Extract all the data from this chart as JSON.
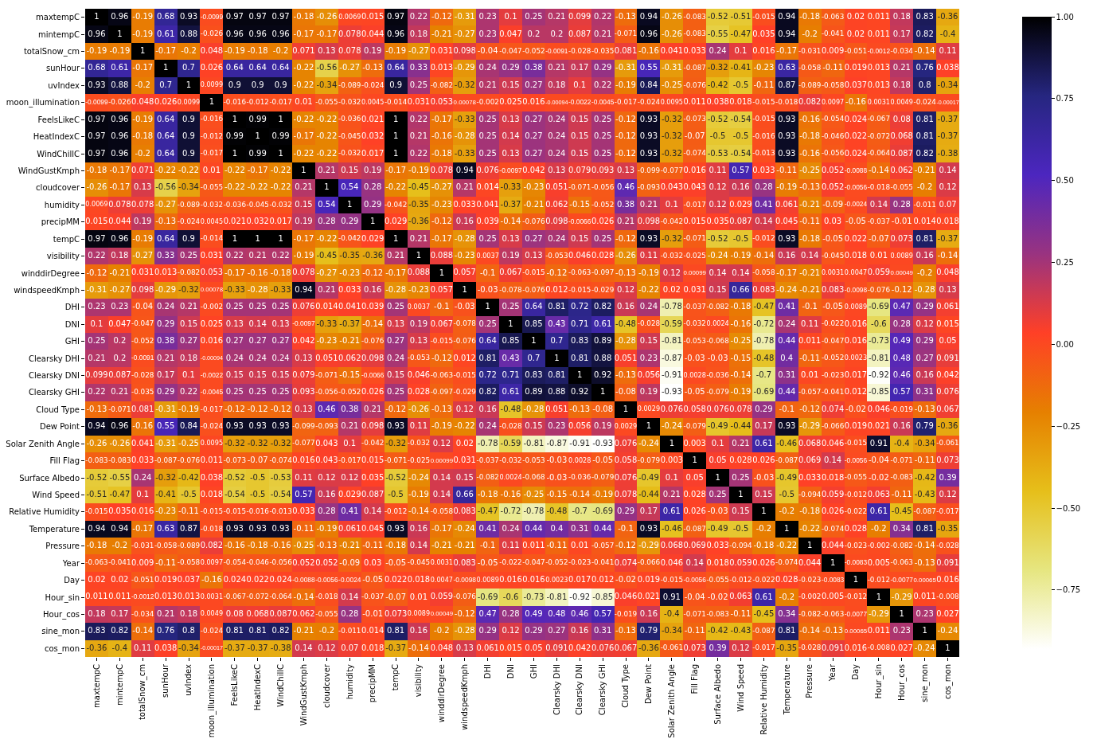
{
  "chart_data": {
    "type": "heatmap",
    "categories": [
      "maxtempC",
      "mintempC",
      "totalSnow_cm",
      "sunHour",
      "uvIndex",
      "moon_illumination",
      "FeelsLikeC",
      "HeatIndexC",
      "WindChillC",
      "WindGustKmph",
      "cloudcover",
      "humidity",
      "precipMM",
      "tempC",
      "visibility",
      "winddirDegree",
      "windspeedKmph",
      "DHI",
      "DNI",
      "GHI",
      "Clearsky DHI",
      "Clearsky DNI",
      "Clearsky GHI",
      "Cloud Type",
      "Dew Point",
      "Solar Zenith Angle",
      "Fill Flag",
      "Surface Albedo",
      "Wind Speed",
      "Relative Humidity",
      "Temperature",
      "Pressure",
      "Year",
      "Day",
      "Hour_sin",
      "Hour_cos",
      "sine_mon",
      "cos_mon"
    ],
    "y_categories": [
      "maxtempC",
      "mintempC",
      "totalSnow_cm",
      "sunHour",
      "uvIndex",
      "moon_illumination",
      "FeelsLikeC",
      "HeatIndexC",
      "WindChillC",
      "WindGustKmph",
      "cloudcover",
      "humidity",
      "precipMM",
      "tempC",
      "visibility",
      "winddirDegree",
      "windspeedKmph",
      "DHI",
      "DNI",
      "GHI",
      "Clearsky DHI",
      "Clearsky DNI",
      "Clearsky GHI",
      "Cloud Type",
      "Dew Point",
      "Solar Zenith Angle",
      "Fill Flag",
      "Surface Albedo",
      "Wind Speed",
      "Relative Humidity",
      "Temperature",
      "Pressure",
      "Year",
      "Day",
      "Hour_sin",
      "Hour_cos",
      "sine_mon",
      "cos_mon"
    ],
    "cells": [
      [
        1,
        0.96,
        -0.19,
        0.68,
        0.93,
        -0.0099,
        0.97,
        0.97,
        0.97,
        -0.18,
        -0.26,
        0.0069,
        0.015,
        0.97,
        0.22,
        -0.12,
        -0.31,
        0.23,
        0.1,
        0.25,
        0.21,
        0.099,
        0.22,
        -0.13,
        0.94,
        -0.26,
        -0.083,
        -0.52,
        -0.51,
        -0.015,
        0.94,
        -0.18,
        -0.063,
        0.02,
        0.011,
        0.18,
        0.83,
        -0.36
      ],
      [
        0.96,
        1,
        -0.19,
        0.61,
        0.88,
        -0.026,
        0.96,
        0.96,
        0.96,
        -0.17,
        -0.17,
        0.078,
        0.044,
        0.96,
        0.18,
        -0.21,
        -0.27,
        0.23,
        0.047,
        0.2,
        0.2,
        0.087,
        0.21,
        -0.071,
        0.96,
        -0.26,
        -0.083,
        -0.55,
        -0.47,
        0.035,
        0.94,
        -0.2,
        -0.041,
        0.02,
        0.011,
        0.17,
        0.82,
        -0.4
      ],
      [
        -0.19,
        -0.19,
        1,
        -0.17,
        -0.2,
        0.048,
        -0.19,
        -0.18,
        -0.2,
        0.071,
        0.13,
        0.078,
        0.19,
        -0.19,
        -0.27,
        0.031,
        0.098,
        -0.04,
        -0.047,
        -0.052,
        -0.0091,
        -0.028,
        -0.035,
        0.081,
        -0.16,
        0.041,
        0.033,
        0.24,
        0.1,
        0.016,
        -0.17,
        -0.031,
        0.009,
        -0.051,
        -0.0012,
        -0.034,
        -0.14,
        0.11
      ],
      [
        0.68,
        0.61,
        -0.17,
        1,
        0.7,
        0.026,
        0.64,
        0.64,
        0.64,
        -0.22,
        -0.56,
        -0.27,
        -0.13,
        0.64,
        0.33,
        0.013,
        -0.29,
        0.24,
        0.29,
        0.38,
        0.21,
        0.17,
        0.29,
        -0.31,
        0.55,
        -0.31,
        -0.087,
        -0.32,
        -0.41,
        -0.23,
        0.63,
        -0.058,
        -0.11,
        0.019,
        0.013,
        0.21,
        0.76,
        0.038
      ],
      [
        0.93,
        0.88,
        -0.2,
        0.7,
        1,
        0.0099,
        0.9,
        0.9,
        0.9,
        -0.22,
        -0.34,
        -0.089,
        -0.024,
        0.9,
        0.25,
        -0.082,
        -0.32,
        0.21,
        0.15,
        0.27,
        0.18,
        0.1,
        0.22,
        -0.19,
        0.84,
        -0.25,
        -0.076,
        -0.42,
        -0.5,
        -0.11,
        0.87,
        -0.089,
        -0.058,
        0.037,
        0.013,
        0.18,
        0.8,
        -0.34
      ],
      [
        -0.0099,
        -0.026,
        0.048,
        0.026,
        0.0099,
        1,
        -0.016,
        -0.012,
        -0.017,
        0.01,
        -0.055,
        -0.032,
        0.0045,
        -0.014,
        0.031,
        0.053,
        0.00078,
        -0.002,
        0.025,
        0.016,
        -0.00094,
        -0.0022,
        -0.0045,
        -0.017,
        -0.024,
        0.0095,
        0.011,
        0.038,
        0.018,
        -0.015,
        -0.018,
        0.082,
        0.0097,
        -0.16,
        0.0031,
        0.0049,
        -0.024,
        -0.00017
      ],
      [
        0.97,
        0.96,
        -0.19,
        0.64,
        0.9,
        -0.016,
        1,
        0.99,
        1,
        -0.22,
        -0.22,
        -0.036,
        0.021,
        1,
        0.22,
        -0.17,
        -0.33,
        0.25,
        0.13,
        0.27,
        0.24,
        0.15,
        0.25,
        -0.12,
        0.93,
        -0.32,
        -0.073,
        -0.52,
        -0.54,
        -0.015,
        0.93,
        -0.16,
        -0.054,
        0.024,
        -0.067,
        0.08,
        0.81,
        -0.37
      ],
      [
        0.97,
        0.96,
        -0.18,
        0.64,
        0.9,
        -0.012,
        0.99,
        1,
        0.99,
        -0.17,
        -0.22,
        -0.045,
        0.032,
        1,
        0.21,
        -0.16,
        -0.28,
        0.25,
        0.14,
        0.27,
        0.24,
        0.15,
        0.25,
        -0.12,
        0.93,
        -0.32,
        -0.07,
        -0.5,
        -0.5,
        -0.016,
        0.93,
        -0.18,
        -0.046,
        0.022,
        -0.072,
        0.068,
        0.81,
        -0.37
      ],
      [
        0.97,
        0.96,
        -0.2,
        0.64,
        0.9,
        -0.017,
        1,
        0.99,
        1,
        -0.22,
        -0.22,
        -0.032,
        0.017,
        1,
        0.22,
        -0.18,
        -0.33,
        0.25,
        0.13,
        0.27,
        0.24,
        0.15,
        0.25,
        -0.12,
        0.93,
        -0.32,
        -0.074,
        -0.53,
        -0.54,
        -0.013,
        0.93,
        -0.16,
        -0.056,
        0.024,
        -0.064,
        0.087,
        0.82,
        -0.38
      ],
      [
        -0.18,
        -0.17,
        0.071,
        -0.22,
        -0.22,
        0.01,
        -0.22,
        -0.17,
        -0.22,
        1,
        0.21,
        0.15,
        0.19,
        -0.17,
        -0.19,
        0.078,
        0.94,
        0.076,
        -0.0097,
        0.042,
        0.13,
        0.079,
        0.093,
        0.13,
        -0.099,
        -0.077,
        0.016,
        0.11,
        0.57,
        0.033,
        -0.11,
        -0.25,
        0.052,
        -0.0088,
        -0.14,
        0.062,
        -0.21,
        0.14
      ],
      [
        -0.26,
        -0.17,
        0.13,
        -0.56,
        -0.34,
        -0.055,
        -0.22,
        -0.22,
        -0.22,
        0.21,
        1,
        0.54,
        0.28,
        -0.22,
        -0.45,
        -0.27,
        0.21,
        0.014,
        -0.33,
        -0.23,
        0.051,
        -0.071,
        -0.056,
        0.46,
        -0.093,
        0.043,
        0.043,
        0.12,
        0.16,
        0.28,
        -0.19,
        -0.13,
        0.052,
        -0.0056,
        -0.018,
        -0.055,
        -0.2,
        0.12
      ],
      [
        0.0069,
        0.078,
        0.078,
        -0.27,
        -0.089,
        -0.032,
        -0.036,
        -0.045,
        -0.032,
        0.15,
        0.54,
        1,
        0.29,
        -0.042,
        -0.35,
        -0.23,
        0.033,
        0.041,
        -0.37,
        -0.21,
        0.062,
        -0.15,
        -0.052,
        0.38,
        0.21,
        0.1,
        -0.017,
        0.12,
        0.029,
        0.41,
        0.061,
        -0.21,
        -0.09,
        -0.0024,
        0.14,
        0.28,
        -0.011,
        0.07
      ],
      [
        0.015,
        0.044,
        0.19,
        -0.13,
        -0.024,
        0.0045,
        0.021,
        0.032,
        0.017,
        0.19,
        0.28,
        0.29,
        1,
        0.029,
        -0.36,
        -0.12,
        0.16,
        0.039,
        -0.14,
        -0.076,
        0.098,
        -0.0066,
        0.026,
        0.21,
        0.098,
        -0.042,
        0.015,
        0.035,
        0.087,
        0.14,
        0.045,
        -0.11,
        0.03,
        -0.05,
        -0.037,
        -0.01,
        0.014,
        0.018
      ],
      [
        0.97,
        0.96,
        -0.19,
        0.64,
        0.9,
        -0.014,
        1,
        1,
        1,
        -0.17,
        -0.22,
        -0.042,
        0.029,
        1,
        0.21,
        -0.17,
        -0.28,
        0.25,
        0.13,
        0.27,
        0.24,
        0.15,
        0.25,
        -0.12,
        0.93,
        -0.32,
        -0.071,
        -0.52,
        -0.5,
        -0.012,
        0.93,
        -0.18,
        -0.05,
        0.022,
        -0.07,
        0.073,
        0.81,
        -0.37
      ],
      [
        0.22,
        0.18,
        -0.27,
        0.33,
        0.25,
        0.031,
        0.22,
        0.21,
        0.22,
        -0.19,
        -0.45,
        -0.35,
        -0.36,
        0.21,
        1,
        0.088,
        -0.23,
        0.0037,
        0.19,
        0.13,
        -0.053,
        0.046,
        0.028,
        -0.26,
        0.11,
        -0.032,
        -0.025,
        -0.24,
        -0.19,
        -0.14,
        0.16,
        0.14,
        -0.045,
        0.018,
        0.01,
        0.0089,
        0.16,
        -0.14
      ],
      [
        -0.12,
        -0.21,
        0.031,
        0.013,
        -0.082,
        0.053,
        -0.17,
        -0.16,
        -0.18,
        0.078,
        -0.27,
        -0.23,
        -0.12,
        -0.17,
        0.088,
        1,
        0.057,
        -0.1,
        0.067,
        -0.015,
        -0.12,
        -0.063,
        -0.097,
        -0.13,
        -0.19,
        0.12,
        0.00099,
        0.14,
        0.14,
        -0.058,
        -0.17,
        -0.21,
        0.0031,
        0.0047,
        0.059,
        0.00049,
        -0.2,
        0.048
      ],
      [
        -0.31,
        -0.27,
        0.098,
        -0.29,
        -0.32,
        0.00078,
        -0.33,
        -0.28,
        -0.33,
        0.94,
        0.21,
        0.033,
        0.16,
        -0.28,
        -0.23,
        0.057,
        1,
        -0.03,
        -0.078,
        -0.076,
        0.012,
        -0.015,
        -0.029,
        0.12,
        -0.22,
        0.02,
        0.031,
        0.15,
        0.66,
        0.083,
        -0.24,
        -0.21,
        0.083,
        -0.0098,
        -0.076,
        -0.12,
        -0.28,
        0.13
      ],
      [
        0.23,
        0.23,
        -0.04,
        0.24,
        0.21,
        -0.002,
        0.25,
        0.25,
        0.25,
        0.076,
        0.014,
        0.041,
        0.039,
        0.25,
        0.0037,
        -0.1,
        -0.03,
        1,
        0.25,
        0.64,
        0.81,
        0.72,
        0.82,
        0.16,
        0.24,
        -0.78,
        -0.037,
        -0.082,
        -0.18,
        -0.47,
        0.41,
        -0.1,
        -0.05,
        0.0089,
        -0.69,
        0.47,
        0.29,
        0.061
      ],
      [
        0.1,
        0.047,
        -0.047,
        0.29,
        0.15,
        0.025,
        0.13,
        0.14,
        0.13,
        -0.0097,
        -0.33,
        -0.37,
        -0.14,
        0.13,
        0.19,
        0.067,
        -0.078,
        0.25,
        1,
        0.85,
        0.43,
        0.71,
        0.61,
        -0.48,
        -0.028,
        -0.59,
        -0.032,
        0.0024,
        -0.16,
        -0.72,
        0.24,
        0.11,
        -0.022,
        0.016,
        -0.6,
        0.28,
        0.12,
        0.015
      ],
      [
        0.25,
        0.2,
        -0.052,
        0.38,
        0.27,
        0.016,
        0.27,
        0.27,
        0.27,
        0.042,
        -0.23,
        -0.21,
        -0.076,
        0.27,
        0.13,
        -0.015,
        -0.076,
        0.64,
        0.85,
        1,
        0.7,
        0.83,
        0.89,
        -0.28,
        0.15,
        -0.81,
        -0.053,
        -0.068,
        -0.25,
        -0.78,
        0.44,
        0.011,
        -0.047,
        0.016,
        -0.73,
        0.49,
        0.29,
        0.05
      ],
      [
        0.21,
        0.2,
        -0.0091,
        0.21,
        0.18,
        -0.00094,
        0.24,
        0.24,
        0.24,
        0.13,
        0.051,
        0.062,
        0.098,
        0.24,
        -0.053,
        -0.12,
        0.012,
        0.81,
        0.43,
        0.7,
        1,
        0.81,
        0.88,
        0.051,
        0.23,
        -0.87,
        -0.03,
        -0.03,
        -0.15,
        -0.48,
        0.4,
        -0.11,
        -0.052,
        0.0023,
        -0.81,
        0.48,
        0.27,
        0.091
      ],
      [
        0.099,
        0.087,
        -0.028,
        0.17,
        0.1,
        -0.0022,
        0.15,
        0.15,
        0.15,
        0.079,
        -0.071,
        -0.15,
        -0.0066,
        0.15,
        0.046,
        -0.063,
        -0.015,
        0.72,
        0.71,
        0.83,
        0.81,
        1,
        0.92,
        -0.13,
        0.056,
        -0.91,
        0.0028,
        -0.036,
        -0.14,
        -0.7,
        0.31,
        0.01,
        -0.023,
        0.017,
        -0.92,
        0.46,
        0.16,
        0.042
      ],
      [
        0.22,
        0.21,
        -0.035,
        0.29,
        0.22,
        -0.0045,
        0.25,
        0.25,
        0.25,
        0.093,
        -0.056,
        -0.052,
        0.026,
        0.25,
        0.028,
        -0.097,
        -0.029,
        0.82,
        0.61,
        0.89,
        0.88,
        0.92,
        1,
        -0.08,
        0.19,
        -0.93,
        -0.05,
        -0.079,
        -0.19,
        -0.69,
        0.44,
        -0.057,
        -0.041,
        0.012,
        -0.85,
        0.57,
        0.31,
        0.076
      ],
      [
        -0.13,
        -0.071,
        0.081,
        -0.31,
        -0.19,
        -0.017,
        -0.12,
        -0.12,
        -0.12,
        0.13,
        0.46,
        0.38,
        0.21,
        -0.12,
        -0.26,
        -0.13,
        0.12,
        0.16,
        -0.48,
        -0.28,
        0.051,
        -0.13,
        -0.08,
        1,
        0.0029,
        0.076,
        0.058,
        0.076,
        0.078,
        0.29,
        -0.1,
        -0.12,
        0.074,
        -0.02,
        0.046,
        -0.019,
        -0.13,
        0.067
      ],
      [
        0.94,
        0.96,
        -0.16,
        0.55,
        0.84,
        -0.024,
        0.93,
        0.93,
        0.93,
        -0.099,
        -0.093,
        0.21,
        0.098,
        0.93,
        0.11,
        -0.19,
        -0.22,
        0.24,
        -0.028,
        0.15,
        0.23,
        0.056,
        0.19,
        0.0029,
        1,
        -0.24,
        -0.079,
        -0.49,
        -0.44,
        0.17,
        0.93,
        -0.29,
        -0.066,
        0.019,
        0.021,
        0.16,
        0.79,
        -0.36
      ],
      [
        -0.26,
        -0.26,
        0.041,
        -0.31,
        -0.25,
        0.0095,
        -0.32,
        -0.32,
        -0.32,
        -0.077,
        0.043,
        0.1,
        -0.042,
        -0.32,
        -0.032,
        0.12,
        0.02,
        -0.78,
        -0.59,
        -0.81,
        -0.87,
        -0.91,
        -0.93,
        0.076,
        -0.24,
        1,
        0.003,
        0.1,
        0.21,
        0.61,
        -0.46,
        0.068,
        0.046,
        -0.015,
        0.91,
        -0.4,
        -0.34,
        -0.061
      ],
      [
        -0.083,
        -0.083,
        0.033,
        -0.087,
        -0.076,
        0.011,
        -0.073,
        -0.07,
        -0.074,
        0.016,
        0.043,
        -0.017,
        0.015,
        -0.071,
        -0.025,
        0.00099,
        0.031,
        -0.037,
        -0.032,
        -0.053,
        -0.03,
        0.0028,
        -0.05,
        0.058,
        -0.079,
        0.003,
        1,
        0.05,
        0.028,
        0.026,
        -0.087,
        0.069,
        0.14,
        -0.0056,
        -0.04,
        -0.071,
        -0.11,
        0.073
      ],
      [
        -0.52,
        -0.55,
        0.24,
        -0.32,
        -0.42,
        0.038,
        -0.52,
        -0.5,
        -0.53,
        0.11,
        0.12,
        0.12,
        0.035,
        -0.52,
        -0.24,
        0.14,
        0.15,
        -0.082,
        0.0024,
        -0.068,
        -0.03,
        -0.036,
        -0.079,
        0.076,
        -0.49,
        0.1,
        0.05,
        1,
        0.25,
        -0.03,
        -0.49,
        0.033,
        0.018,
        -0.055,
        -0.02,
        -0.083,
        -0.42,
        0.39
      ],
      [
        -0.51,
        -0.47,
        0.1,
        -0.41,
        -0.5,
        0.018,
        -0.54,
        -0.5,
        -0.54,
        0.57,
        0.16,
        0.029,
        0.087,
        -0.5,
        -0.19,
        0.14,
        0.66,
        -0.18,
        -0.16,
        -0.25,
        -0.15,
        -0.14,
        -0.19,
        0.078,
        -0.44,
        0.21,
        0.028,
        0.25,
        1,
        0.15,
        -0.5,
        -0.094,
        0.059,
        -0.012,
        0.063,
        -0.11,
        -0.43,
        0.12
      ],
      [
        -0.015,
        0.035,
        0.016,
        -0.23,
        -0.11,
        -0.015,
        -0.015,
        -0.016,
        -0.013,
        0.033,
        0.28,
        0.41,
        0.14,
        -0.012,
        -0.14,
        -0.058,
        0.083,
        -0.47,
        -0.72,
        -0.78,
        -0.48,
        -0.7,
        -0.69,
        0.29,
        0.17,
        0.61,
        0.026,
        -0.03,
        0.15,
        1,
        -0.2,
        -0.18,
        0.026,
        -0.022,
        0.61,
        -0.45,
        -0.087,
        -0.017
      ],
      [
        0.94,
        0.94,
        -0.17,
        0.63,
        0.87,
        -0.018,
        0.93,
        0.93,
        0.93,
        -0.11,
        -0.19,
        0.061,
        0.045,
        0.93,
        0.16,
        -0.17,
        -0.24,
        0.41,
        0.24,
        0.44,
        0.4,
        0.31,
        0.44,
        -0.1,
        0.93,
        -0.46,
        -0.087,
        -0.49,
        -0.5,
        -0.2,
        1,
        -0.22,
        -0.074,
        0.028,
        -0.2,
        0.34,
        0.81,
        -0.35
      ],
      [
        -0.18,
        -0.2,
        -0.031,
        -0.058,
        -0.089,
        0.082,
        -0.16,
        -0.18,
        -0.16,
        -0.25,
        -0.13,
        -0.21,
        -0.11,
        -0.18,
        0.14,
        -0.21,
        -0.21,
        -0.1,
        0.11,
        0.011,
        -0.11,
        0.01,
        -0.057,
        -0.12,
        -0.29,
        0.068,
        0.069,
        0.033,
        -0.094,
        -0.18,
        -0.22,
        1,
        0.044,
        -0.023,
        -0.002,
        -0.082,
        -0.14,
        -0.028
      ],
      [
        -0.063,
        -0.041,
        0.009,
        -0.11,
        -0.058,
        0.0097,
        -0.054,
        -0.046,
        -0.056,
        0.052,
        0.052,
        -0.09,
        0.03,
        -0.05,
        -0.045,
        0.0031,
        0.083,
        -0.05,
        -0.022,
        -0.047,
        -0.052,
        -0.023,
        -0.041,
        0.074,
        -0.066,
        0.046,
        0.14,
        0.018,
        0.059,
        0.026,
        -0.074,
        0.044,
        1,
        -0.0083,
        0.005,
        -0.063,
        -0.13,
        0.091
      ],
      [
        0.02,
        0.02,
        -0.051,
        0.019,
        0.037,
        -0.16,
        0.024,
        0.022,
        0.024,
        -0.0088,
        -0.0056,
        -0.0024,
        -0.05,
        0.022,
        0.018,
        0.0047,
        -0.0098,
        0.0089,
        0.016,
        0.016,
        0.0023,
        0.017,
        0.012,
        -0.02,
        0.019,
        -0.015,
        -0.0056,
        -0.055,
        -0.012,
        -0.022,
        0.028,
        -0.023,
        -0.0083,
        1,
        -0.012,
        -0.0077,
        0.00065,
        0.016
      ],
      [
        0.011,
        0.011,
        -0.0012,
        0.013,
        0.013,
        0.0031,
        -0.067,
        -0.072,
        -0.064,
        -0.14,
        -0.018,
        0.14,
        -0.037,
        -0.07,
        0.01,
        0.059,
        -0.076,
        -0.69,
        -0.6,
        -0.73,
        -0.81,
        -0.92,
        -0.85,
        0.046,
        0.021,
        0.91,
        -0.04,
        -0.02,
        0.063,
        0.61,
        -0.2,
        -0.002,
        0.005,
        -0.012,
        1,
        -0.29,
        0.011,
        -0.008
      ],
      [
        0.18,
        0.17,
        -0.034,
        0.21,
        0.18,
        0.0049,
        0.08,
        0.068,
        0.087,
        0.062,
        -0.055,
        0.28,
        -0.01,
        0.073,
        0.0089,
        0.00049,
        -0.12,
        0.47,
        0.28,
        0.49,
        0.48,
        0.46,
        0.57,
        -0.019,
        0.16,
        -0.4,
        -0.071,
        -0.083,
        -0.11,
        -0.45,
        0.34,
        -0.082,
        -0.063,
        -0.0077,
        -0.29,
        1,
        0.23,
        0.027
      ],
      [
        0.83,
        0.82,
        -0.14,
        0.76,
        0.8,
        -0.024,
        0.81,
        0.81,
        0.82,
        -0.21,
        -0.2,
        -0.011,
        0.014,
        0.81,
        0.16,
        -0.2,
        -0.28,
        0.29,
        0.12,
        0.29,
        0.27,
        0.16,
        0.31,
        -0.13,
        0.79,
        -0.34,
        -0.11,
        -0.42,
        -0.43,
        -0.087,
        0.81,
        -0.14,
        -0.13,
        0.00065,
        0.011,
        0.23,
        1,
        -0.24
      ],
      [
        -0.36,
        -0.4,
        0.11,
        0.038,
        -0.34,
        -0.00017,
        -0.37,
        -0.37,
        -0.38,
        0.14,
        0.12,
        0.07,
        0.018,
        -0.37,
        -0.14,
        0.048,
        0.13,
        0.061,
        0.015,
        0.05,
        0.091,
        0.042,
        0.076,
        0.067,
        -0.36,
        -0.061,
        0.073,
        0.39,
        0.12,
        -0.017,
        -0.35,
        -0.028,
        0.091,
        0.016,
        -0.008,
        0.027,
        -0.24,
        1
      ]
    ],
    "clim": [
      -0.93,
      1
    ],
    "cticks": [
      {
        "value": -0.75,
        "label": "−0.75"
      },
      {
        "value": -0.5,
        "label": "−0.50"
      },
      {
        "value": -0.25,
        "label": "−0.25"
      },
      {
        "value": 0,
        "label": "0.00"
      },
      {
        "value": 0.25,
        "label": "0.25"
      },
      {
        "value": 0.5,
        "label": "0.50"
      },
      {
        "value": 0.75,
        "label": "0.75"
      },
      {
        "value": 1,
        "label": "1.00"
      }
    ],
    "data_labels": true
  }
}
